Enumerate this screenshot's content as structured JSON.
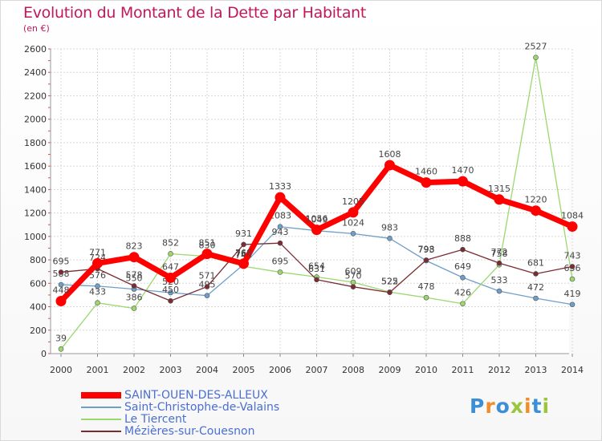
{
  "header": {
    "title": "Evolution du Montant de la Dette par Habitant",
    "subtitle": "(en €)"
  },
  "colors": {
    "title": "#c2185b",
    "legend_text": "#4a6fd0",
    "grid": "#d8d8d8"
  },
  "logo": {
    "text": "Proxiti",
    "colors": [
      "#3a8fd6",
      "#f28c28",
      "#3a8fd6",
      "#9bc53d",
      "#f28c28",
      "#3a8fd6",
      "#9bc53d"
    ]
  },
  "chart_data": {
    "type": "line",
    "x": [
      "2000",
      "2001",
      "2002",
      "2003",
      "2004",
      "2005",
      "2006",
      "2007",
      "2008",
      "2009",
      "2010",
      "2011",
      "2012",
      "2013",
      "2014"
    ],
    "ylim": [
      0,
      2600
    ],
    "yticks": [
      0,
      200,
      400,
      600,
      800,
      1000,
      1200,
      1400,
      1600,
      1800,
      2000,
      2200,
      2400,
      2600
    ],
    "grid": true,
    "legend_position": "bottom-left",
    "series": [
      {
        "name": "SAINT-OUEN-DES-ALLEUX",
        "color": "#ff0000",
        "width": 7,
        "values": [
          448,
          771,
          823,
          647,
          851,
          768,
          1333,
          1056,
          1205,
          1608,
          1460,
          1470,
          1315,
          1220,
          1084
        ],
        "labels": [
          "448",
          "771",
          "823",
          "647",
          "851",
          "768",
          "1333",
          "1056",
          "1205",
          "1608",
          "1460",
          "1470",
          "1315",
          "1220",
          "1084"
        ]
      },
      {
        "name": "Saint-Christophe-de-Valains",
        "color": "#6f9ec9",
        "width": 1.3,
        "values": [
          588,
          576,
          550,
          520,
          495,
          760,
          1083,
          1049,
          1024,
          983,
          793,
          649,
          533,
          472,
          419
        ],
        "labels": [
          "588",
          "576",
          "550",
          "520",
          "495",
          "760",
          "1083",
          "1049",
          "1024",
          "983",
          "793",
          "649",
          "533",
          "472",
          "419"
        ]
      },
      {
        "name": "Le Tiercent",
        "color": "#9ad86e",
        "width": 1.3,
        "values": [
          39,
          433,
          386,
          852,
          830,
          745,
          695,
          654,
          609,
          525,
          478,
          426,
          758,
          2527,
          636
        ],
        "labels": [
          "39",
          "433",
          "386",
          "852",
          "830",
          "745",
          "695",
          "654",
          "609",
          "525",
          "478",
          "426",
          "758",
          "2527",
          "636"
        ]
      },
      {
        "name": "Mézières-sur-Couesnon",
        "color": "#7b2c33",
        "width": 1.3,
        "values": [
          695,
          724,
          578,
          450,
          571,
          931,
          943,
          631,
          570,
          522,
          798,
          888,
          772,
          681,
          743
        ],
        "labels": [
          "695",
          "724",
          "578",
          "450",
          "571",
          "931",
          "943",
          "631",
          "570",
          "522",
          "798",
          "888",
          "772",
          "681",
          "743"
        ]
      }
    ]
  }
}
